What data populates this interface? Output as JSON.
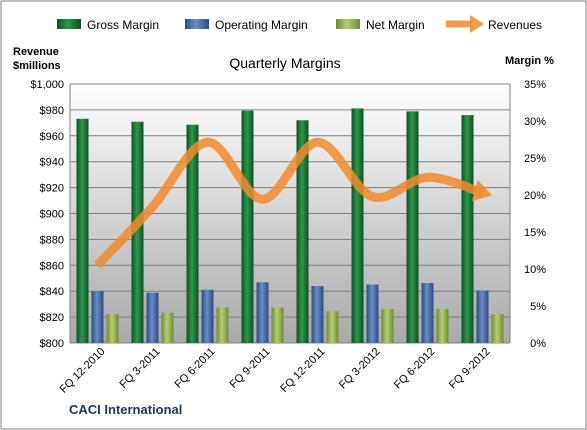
{
  "chart_data": {
    "type": "bar",
    "title": "Quarterly Margins",
    "categories": [
      "FQ 12-2010",
      "FQ 3-2011",
      "FQ 6-2011",
      "FQ 9-2011",
      "FQ 12-2011",
      "FQ 3-2012",
      "FQ 6-2012",
      "FQ 9-2012"
    ],
    "series": [
      {
        "name": "Gross Margin",
        "axis": "right",
        "color": "#1e7a3c",
        "values": [
          30.3,
          29.9,
          29.5,
          31.4,
          30.1,
          31.7,
          31.3,
          30.8
        ]
      },
      {
        "name": "Operating Margin",
        "axis": "right",
        "color": "#4a6fb0",
        "values": [
          7.0,
          6.8,
          7.2,
          8.2,
          7.7,
          7.9,
          8.1,
          7.1
        ]
      },
      {
        "name": "Net Margin",
        "axis": "right",
        "color": "#9bbb59",
        "values": [
          3.9,
          4.1,
          4.8,
          4.8,
          4.3,
          4.6,
          4.6,
          3.9
        ]
      },
      {
        "name": "Revenues",
        "type": "line",
        "axis": "left",
        "color": "#f28b2c",
        "values": [
          860,
          905,
          955,
          911,
          955,
          913,
          928,
          916
        ]
      }
    ],
    "y_left": {
      "label_line1": "Revenue",
      "label_line2": "$millions",
      "range": [
        800,
        1000
      ],
      "ticks": [
        "$800",
        "$820",
        "$840",
        "$860",
        "$880",
        "$900",
        "$920",
        "$940",
        "$960",
        "$980",
        "$1,000"
      ]
    },
    "y_right": {
      "label": "Margin %",
      "range": [
        0,
        35
      ],
      "ticks": [
        "0%",
        "5%",
        "10%",
        "15%",
        "20%",
        "25%",
        "30%",
        "35%"
      ]
    },
    "grid": true,
    "legend_position": "top"
  },
  "footer": "CACI International"
}
